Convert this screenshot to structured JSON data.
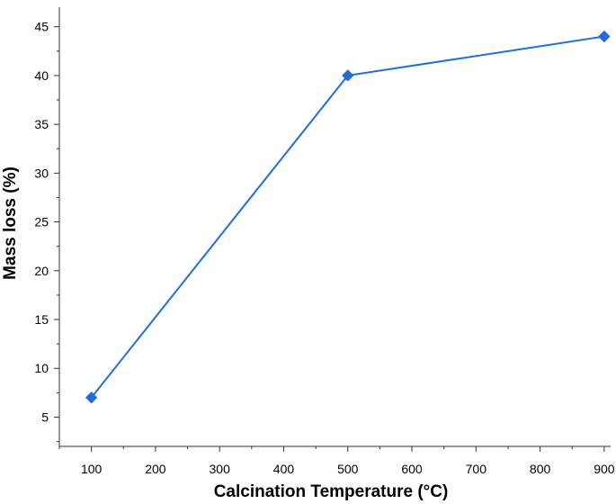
{
  "chart_data": {
    "type": "line",
    "title": "",
    "xlabel": "Calcination Temperature (°C)",
    "ylabel": "Mass loss (%)",
    "xlim": [
      50,
      910
    ],
    "ylim": [
      2,
      47
    ],
    "x_ticks": [
      100,
      200,
      300,
      400,
      500,
      600,
      700,
      800,
      900
    ],
    "y_ticks": [
      5,
      10,
      15,
      20,
      25,
      30,
      35,
      40,
      45
    ],
    "x_tick_labels": [
      "100",
      "200",
      "300",
      "400",
      "500",
      "600",
      "700",
      "800",
      "900"
    ],
    "y_tick_labels": [
      "5",
      "10",
      "15",
      "20",
      "25",
      "30",
      "35",
      "40",
      "45"
    ],
    "grid": false,
    "marker": "diamond",
    "series_color": "#1f6fdb",
    "series": [
      {
        "x": [
          100,
          500,
          900
        ],
        "y": [
          7,
          40,
          44
        ]
      }
    ]
  }
}
